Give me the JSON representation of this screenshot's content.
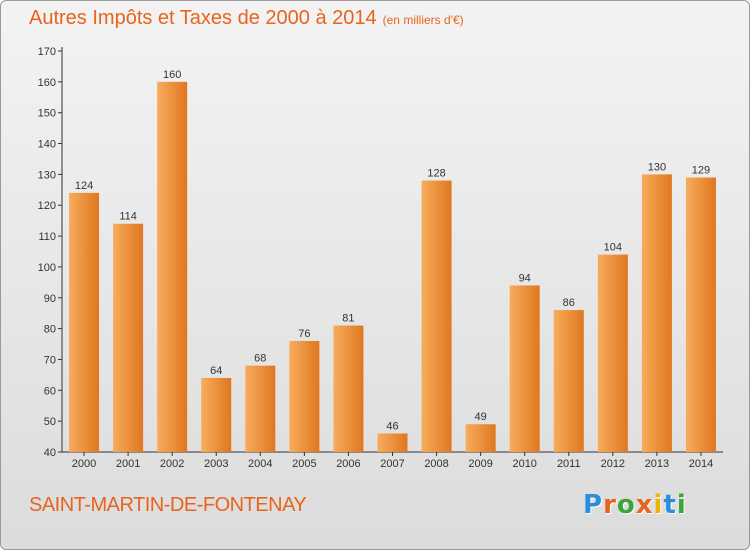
{
  "header": {
    "title": "Autres Impôts et Taxes de 2000 à 2014",
    "unit": "(en milliers d'€)"
  },
  "footer": {
    "commune": "SAINT-MARTIN-DE-FONTENAY",
    "logo": [
      "P",
      "r",
      "o",
      "x",
      "i",
      "t",
      "i"
    ],
    "logo_colors": [
      "#2a8fd8",
      "#e8641e",
      "#3aa53a",
      "#e8641e",
      "#f0b400",
      "#2a8fd8",
      "#3aa53a"
    ]
  },
  "colors": {
    "accent": "#e8641e",
    "bar_light": "#f7ac5c",
    "bar_dark": "#e0771f",
    "axis": "#333333",
    "grid_tick": "#666666"
  },
  "chart_data": {
    "type": "bar",
    "title": "Autres Impôts et Taxes de 2000 à 2014",
    "categories": [
      "2000",
      "2001",
      "2002",
      "2003",
      "2004",
      "2005",
      "2006",
      "2007",
      "2008",
      "2009",
      "2010",
      "2011",
      "2012",
      "2013",
      "2014"
    ],
    "values": [
      124,
      114,
      160,
      64,
      68,
      76,
      81,
      46,
      128,
      49,
      94,
      86,
      104,
      130,
      129
    ],
    "ylim": [
      40,
      170
    ],
    "yticks": [
      40,
      50,
      60,
      70,
      80,
      90,
      100,
      110,
      120,
      130,
      140,
      150,
      160,
      170
    ],
    "grid": false,
    "legend": "none"
  }
}
